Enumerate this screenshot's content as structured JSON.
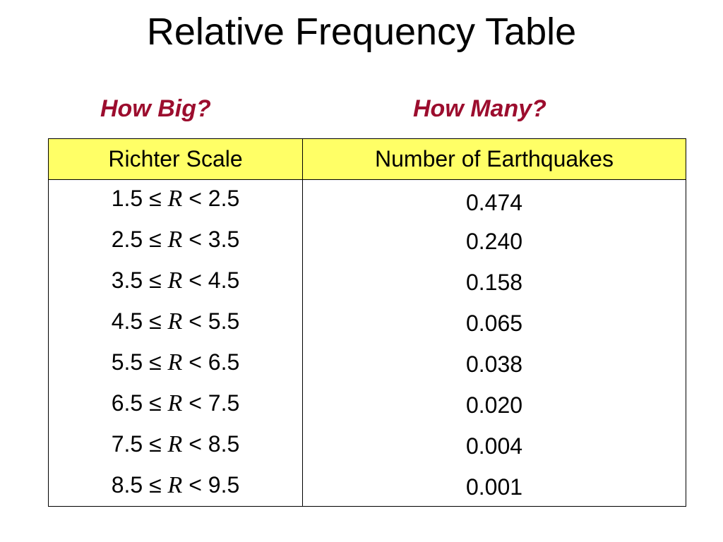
{
  "title": "Relative Frequency Table",
  "subheads": {
    "left": "How Big?",
    "right": "How Many?"
  },
  "colors": {
    "subhead": "#9c0d2e",
    "header_fill": "#ffff66"
  },
  "table": {
    "headers": [
      "Richter Scale",
      "Number of Earthquakes"
    ],
    "rows": [
      {
        "low": "1.5",
        "le": "≤",
        "var": "R",
        "lt": "<",
        "high": "2.5",
        "value": "0.474"
      },
      {
        "low": "2.5",
        "le": "≤",
        "var": "R",
        "lt": "<",
        "high": "3.5",
        "value": "0.240"
      },
      {
        "low": "3.5",
        "le": "≤",
        "var": "R",
        "lt": "<",
        "high": "4.5",
        "value": "0.158"
      },
      {
        "low": "4.5",
        "le": "≤",
        "var": "R",
        "lt": "<",
        "high": "5.5",
        "value": "0.065"
      },
      {
        "low": "5.5",
        "le": "≤",
        "var": "R",
        "lt": "<",
        "high": "6.5",
        "value": "0.038"
      },
      {
        "low": "6.5",
        "le": "≤",
        "var": "R",
        "lt": "<",
        "high": "7.5",
        "value": "0.020"
      },
      {
        "low": "7.5",
        "le": "≤",
        "var": "R",
        "lt": "<",
        "high": "8.5",
        "value": "0.004"
      },
      {
        "low": "8.5",
        "le": "≤",
        "var": "R",
        "lt": "<",
        "high": "9.5",
        "value": "0.001"
      }
    ]
  }
}
